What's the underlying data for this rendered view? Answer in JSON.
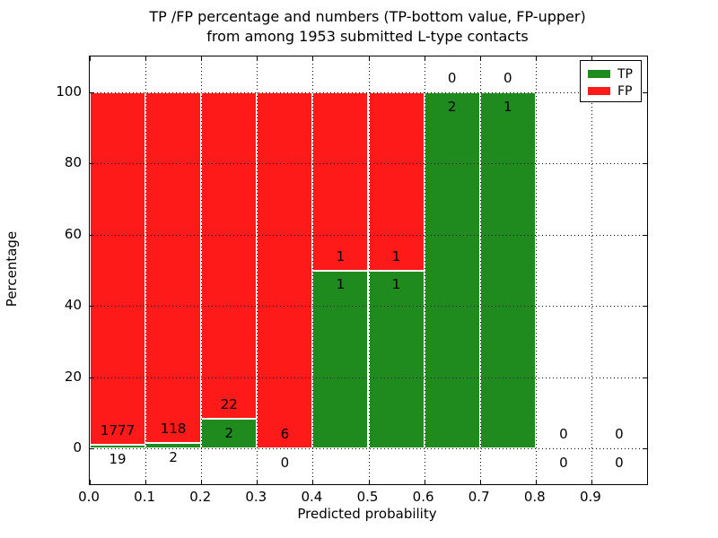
{
  "figure": {
    "title_line1": "TP /FP percentage and numbers (TP-bottom value, FP-upper)",
    "title_line2": "from among 1953 submitted L-type contacts",
    "xlabel": "Predicted probability",
    "ylabel": "Percentage"
  },
  "colors": {
    "tp_green": "#1f8b1f",
    "fp_red": "#ff1a1a",
    "bar_edge": "#ffffff",
    "text_and_axes": "#000000",
    "background": "#ffffff"
  },
  "chart_data": {
    "type": "bar",
    "stacked": true,
    "title": "TP /FP percentage and numbers (TP-bottom value, FP-upper)\nfrom among 1953 submitted L-type contacts",
    "xlabel": "Predicted probability",
    "ylabel": "Percentage",
    "bin_width": 0.1,
    "bin_starts": [
      0.0,
      0.1,
      0.2,
      0.3,
      0.4,
      0.5,
      0.6,
      0.7,
      0.8,
      0.9
    ],
    "series": [
      {
        "name": "TP",
        "color": "#1f8b1f",
        "counts": [
          19,
          2,
          2,
          0,
          1,
          1,
          2,
          1,
          0,
          0
        ],
        "pct": [
          1.06,
          1.67,
          8.33,
          0,
          50,
          50,
          100,
          100,
          0,
          0
        ]
      },
      {
        "name": "FP",
        "color": "#ff1a1a",
        "counts": [
          1777,
          118,
          22,
          6,
          1,
          1,
          0,
          0,
          0,
          0
        ],
        "pct": [
          98.94,
          98.33,
          91.67,
          100,
          50,
          50,
          0,
          0,
          0,
          0
        ]
      }
    ],
    "count_label_offset_pct": 4,
    "x_tick_labels": [
      "0.0",
      "0.1",
      "0.2",
      "0.3",
      "0.4",
      "0.5",
      "0.6",
      "0.7",
      "0.8",
      "0.9"
    ],
    "y_tick_values": [
      0,
      20,
      40,
      60,
      80,
      100
    ],
    "y_tick_labels": [
      "0",
      "20",
      "40",
      "60",
      "80",
      "100"
    ],
    "xlim": [
      0.0,
      1.0
    ],
    "ylim": [
      -10,
      110
    ],
    "grid": "dotted",
    "legend": {
      "position": "upper right",
      "entries": [
        "TP",
        "FP"
      ]
    }
  }
}
